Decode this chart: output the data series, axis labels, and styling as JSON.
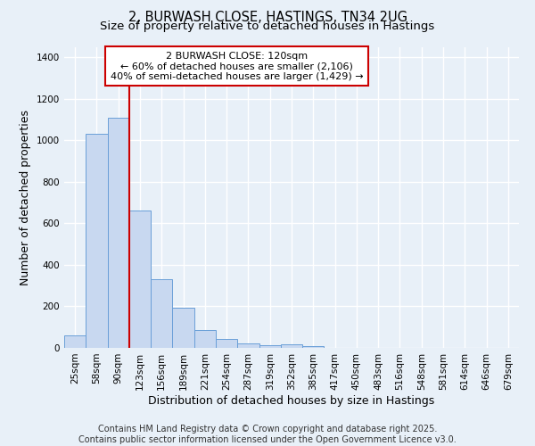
{
  "title1": "2, BURWASH CLOSE, HASTINGS, TN34 2UG",
  "title2": "Size of property relative to detached houses in Hastings",
  "xlabel": "Distribution of detached houses by size in Hastings",
  "ylabel": "Number of detached properties",
  "bar_color": "#c8d8f0",
  "bar_edge_color": "#6a9fd8",
  "background_color": "#e8f0f8",
  "grid_color": "#ffffff",
  "categories": [
    "25sqm",
    "58sqm",
    "90sqm",
    "123sqm",
    "156sqm",
    "189sqm",
    "221sqm",
    "254sqm",
    "287sqm",
    "319sqm",
    "352sqm",
    "385sqm",
    "417sqm",
    "450sqm",
    "483sqm",
    "516sqm",
    "548sqm",
    "581sqm",
    "614sqm",
    "646sqm",
    "679sqm"
  ],
  "values": [
    62,
    1030,
    1110,
    660,
    330,
    193,
    88,
    45,
    22,
    15,
    18,
    10,
    0,
    0,
    0,
    0,
    0,
    0,
    0,
    0,
    0
  ],
  "vline_x": 2.5,
  "vline_color": "#cc0000",
  "annotation_text": "2 BURWASH CLOSE: 120sqm\n← 60% of detached houses are smaller (2,106)\n40% of semi-detached houses are larger (1,429) →",
  "annotation_box_color": "#ffffff",
  "annotation_box_edge": "#cc0000",
  "ylim": [
    0,
    1450
  ],
  "yticks": [
    0,
    200,
    400,
    600,
    800,
    1000,
    1200,
    1400
  ],
  "footnote": "Contains HM Land Registry data © Crown copyright and database right 2025.\nContains public sector information licensed under the Open Government Licence v3.0.",
  "title_fontsize": 10.5,
  "subtitle_fontsize": 9.5,
  "axis_label_fontsize": 9,
  "tick_fontsize": 7.5,
  "annot_fontsize": 8,
  "footnote_fontsize": 7
}
